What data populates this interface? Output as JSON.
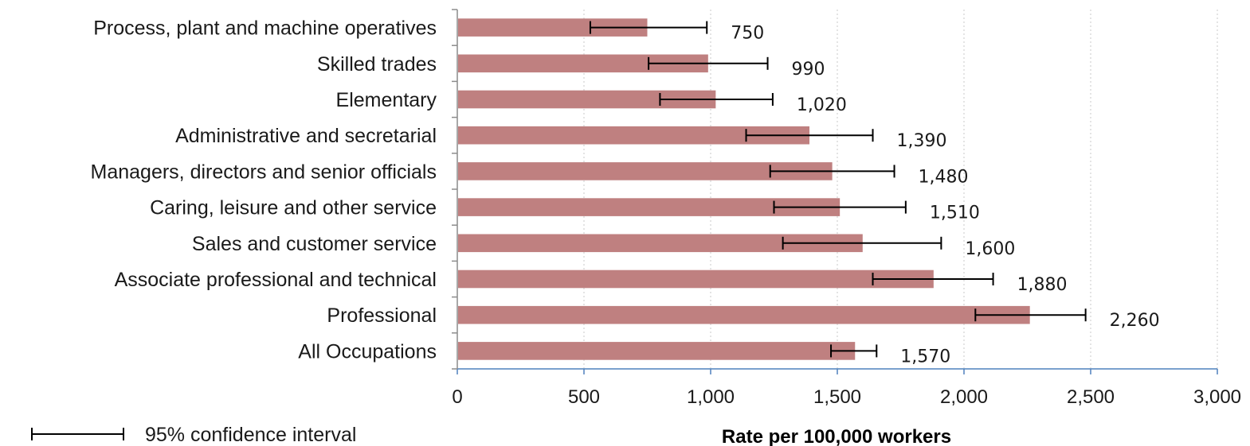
{
  "chart_data": {
    "type": "bar",
    "orientation": "horizontal",
    "categories": [
      "Process, plant and machine operatives",
      "Skilled trades",
      "Elementary",
      "Administrative and secretarial",
      "Managers, directors and senior officials",
      "Caring, leisure and other service",
      "Sales and customer service",
      "Associate professional and technical",
      "Professional",
      "All Occupations"
    ],
    "values": [
      750,
      990,
      1020,
      1390,
      1480,
      1510,
      1600,
      1880,
      2260,
      1570
    ],
    "value_labels": [
      "750",
      "990",
      "1,020",
      "1,390",
      "1,480",
      "1,510",
      "1,600",
      "1,880",
      "2,260",
      "1,570"
    ],
    "ci_low": [
      525,
      755,
      800,
      1140,
      1235,
      1250,
      1285,
      1640,
      2045,
      1475
    ],
    "ci_high": [
      985,
      1225,
      1245,
      1640,
      1725,
      1770,
      1910,
      2115,
      2480,
      1655
    ],
    "xlim": [
      0,
      3000
    ],
    "xticks": [
      0,
      500,
      1000,
      1500,
      2000,
      2500,
      3000
    ],
    "xtick_labels": [
      "0",
      "500",
      "1,000",
      "1,500",
      "2,000",
      "2,500",
      "3,000"
    ],
    "xlabel": "Rate per 100,000 workers",
    "ylabel": "",
    "title": "",
    "grid": "vertical",
    "legend": {
      "label": "95% confidence interval",
      "position": "bottom-left"
    },
    "colors": {
      "bar": "#bf8080",
      "error_bar": "#000000",
      "grid": "#c8c8c8",
      "axis": "#4f81bd"
    }
  }
}
